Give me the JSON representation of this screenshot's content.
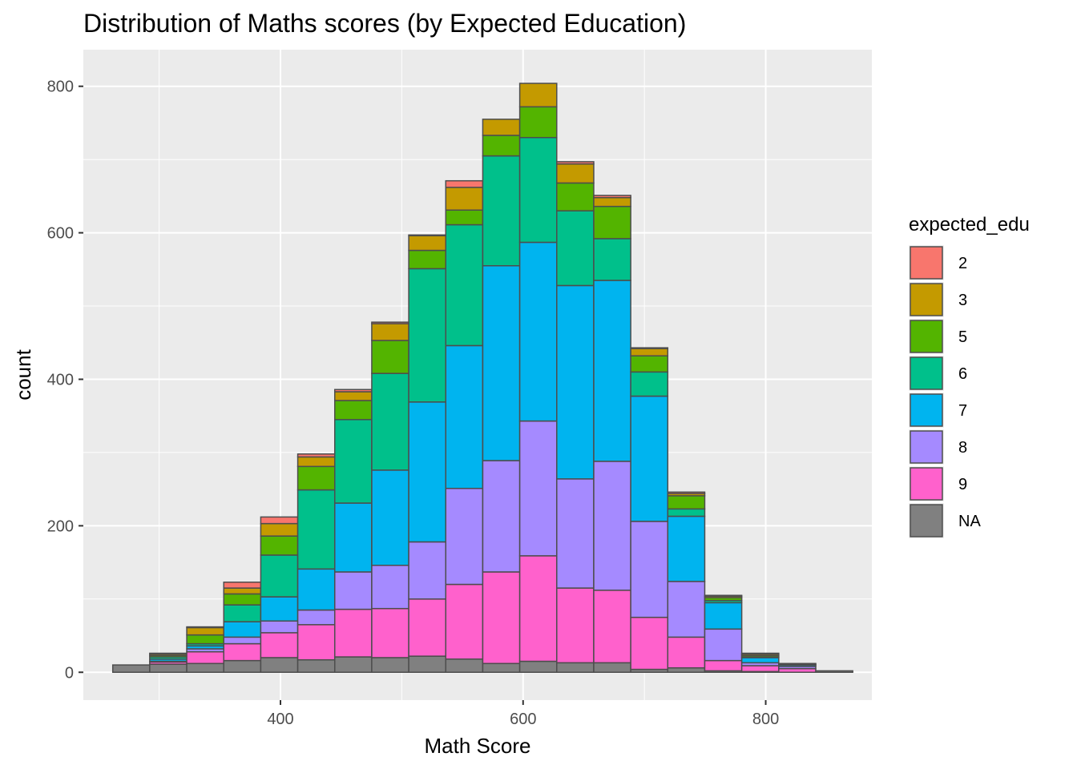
{
  "chart_data": {
    "type": "bar",
    "subtype": "stacked-histogram",
    "title": "Distribution of Maths scores (by Expected Education)",
    "xlabel": "Math Score",
    "ylabel": "count",
    "xlim": [
      237.5,
      887.5
    ],
    "ylim": [
      -38,
      850
    ],
    "x_ticks": [
      400,
      600,
      800
    ],
    "y_ticks": [
      0,
      200,
      400,
      600,
      800
    ],
    "grid": true,
    "bin_width": 30.5,
    "bin_centers": [
      277,
      307.5,
      338,
      368.5,
      399,
      429.5,
      460,
      490.5,
      521,
      551.5,
      582,
      612.5,
      643,
      673.5,
      704,
      734.5,
      765,
      795.5,
      826,
      856.5
    ],
    "legend": {
      "title": "expected_edu",
      "position": "right"
    },
    "series": [
      {
        "name": "NA",
        "color": "#808080",
        "values": [
          10,
          11,
          12,
          16,
          20,
          17,
          21,
          20,
          22,
          18,
          12,
          15,
          13,
          13,
          4,
          6,
          2,
          1,
          0,
          2
        ]
      },
      {
        "name": "9",
        "color": "#FF61CC",
        "values": [
          0,
          3,
          16,
          23,
          34,
          48,
          65,
          67,
          78,
          102,
          125,
          144,
          102,
          99,
          71,
          42,
          14,
          8,
          5,
          0
        ]
      },
      {
        "name": "8",
        "color": "#A58AFF",
        "values": [
          0,
          1,
          4,
          9,
          16,
          20,
          51,
          59,
          78,
          131,
          152,
          184,
          149,
          176,
          131,
          76,
          43,
          4,
          3,
          0
        ]
      },
      {
        "name": "7",
        "color": "#00B4EF",
        "values": [
          0,
          3,
          4,
          21,
          33,
          56,
          94,
          130,
          191,
          195,
          266,
          244,
          264,
          247,
          171,
          89,
          36,
          7,
          2,
          0
        ]
      },
      {
        "name": "6",
        "color": "#00C08B",
        "values": [
          0,
          3,
          3,
          23,
          57,
          108,
          114,
          132,
          182,
          165,
          150,
          143,
          102,
          57,
          33,
          10,
          3,
          1,
          1,
          0
        ]
      },
      {
        "name": "5",
        "color": "#53B400",
        "values": [
          0,
          2,
          12,
          15,
          26,
          32,
          26,
          45,
          25,
          20,
          28,
          42,
          38,
          44,
          22,
          18,
          4,
          2,
          1,
          0
        ]
      },
      {
        "name": "3",
        "color": "#C49A00",
        "values": [
          0,
          2,
          10,
          8,
          17,
          13,
          12,
          23,
          20,
          31,
          22,
          32,
          26,
          12,
          10,
          3,
          2,
          2,
          0,
          0
        ]
      },
      {
        "name": "2",
        "color": "#F8766D",
        "values": [
          0,
          1,
          1,
          8,
          9,
          4,
          3,
          2,
          1,
          9,
          0,
          0,
          3,
          3,
          1,
          2,
          1,
          1,
          0,
          0
        ]
      }
    ]
  }
}
